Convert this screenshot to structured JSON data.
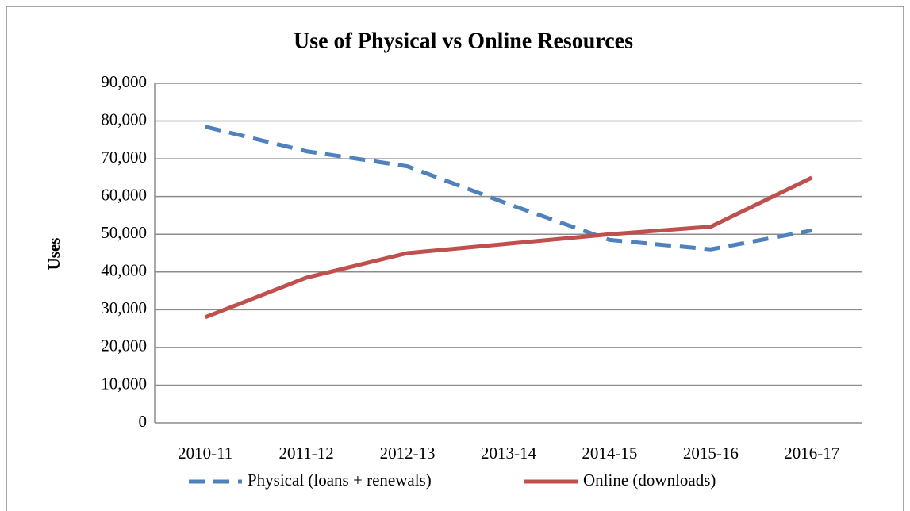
{
  "chart_data": {
    "type": "line",
    "title": "Use of Physical vs Online  Resources",
    "y_label": "Uses",
    "categories": [
      "2010-11",
      "2011-12",
      "2012-13",
      "2013-14",
      "2014-15",
      "2015-16",
      "2016-17"
    ],
    "series": [
      {
        "name": "Physical (loans + renewals)",
        "color": "#4f81bd",
        "dashed": true,
        "values": [
          78500,
          72000,
          68000,
          58000,
          48500,
          46000,
          51000
        ]
      },
      {
        "name": "Online (downloads)",
        "color": "#c0504d",
        "dashed": false,
        "values": [
          28000,
          38500,
          45000,
          47500,
          50000,
          52000,
          65000
        ]
      }
    ],
    "ylim": [
      0,
      90000
    ],
    "yticks": [
      0,
      {
        "value": 10000,
        "label": "10,000"
      },
      {
        "value": 20000,
        "label": "20,000"
      },
      {
        "value": 30000,
        "label": "30,000"
      },
      {
        "value": 40000,
        "label": "40,000"
      },
      {
        "value": 50000,
        "label": "50,000"
      },
      {
        "value": 60000,
        "label": "60,000"
      },
      {
        "value": 70000,
        "label": "70,000"
      },
      {
        "value": 80000,
        "label": "80,000"
      },
      {
        "value": 90000,
        "label": "90,000"
      }
    ],
    "grid": true,
    "legend": "bottom"
  }
}
